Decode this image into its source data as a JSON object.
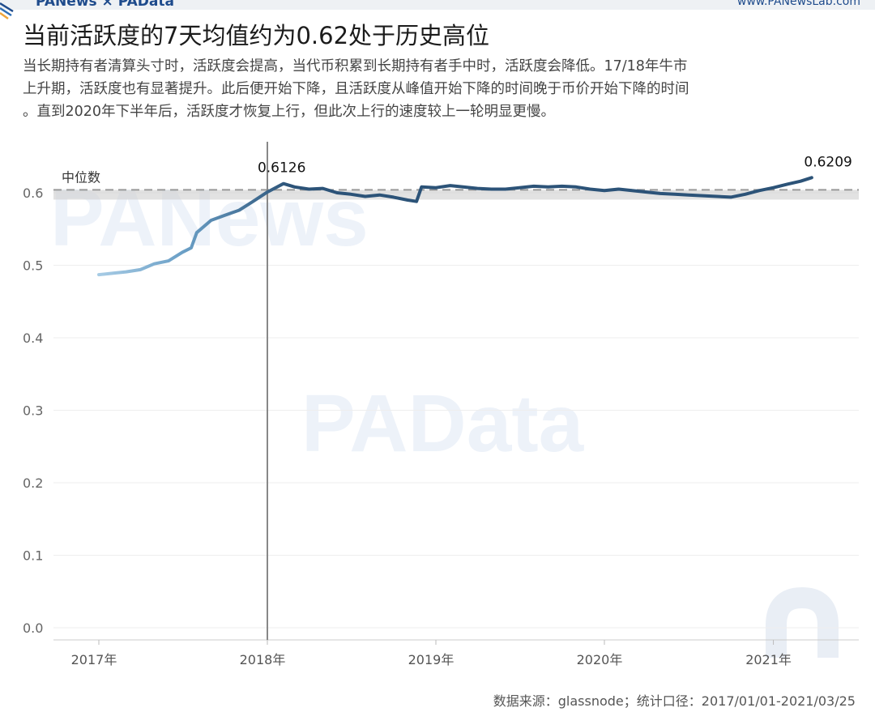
{
  "header": {
    "brand_left": "PANews × PAData",
    "brand_right": "www.PANewsLab.com"
  },
  "title": "当前活跃度的7天均值约为0.62处于历史高位",
  "subtitle_lines": [
    "当长期持有者清算头寸时，活跃度会提高，当代币积累到长期持有者手中时，活跃度会降低。17/18年牛市",
    "上升期，活跃度也有显著提升。此后便开始下降，且活跃度从峰值开始下降的时间晚于币价开始下降的时间",
    "。直到2020年下半年后，活跃度才恢复上行，但此次上行的速度较上一轮明显更慢。"
  ],
  "footer": "数据来源：glassnode；统计口径：2017/01/01-2021/03/25",
  "watermarks": [
    "PANews",
    "PAData"
  ],
  "colors": {
    "line_light": "#a9cde6",
    "line_dark": "#2c5378",
    "median": "#999999",
    "vline": "#888888",
    "grid": "#eeeeee",
    "brand": "#1e4b8c"
  },
  "chart_data": {
    "type": "line",
    "title": "当前活跃度的7天均值约为0.62处于历史高位",
    "xlabel": "",
    "ylabel": "",
    "ylim": [
      0,
      0.65
    ],
    "xlim": [
      "2016-10-01",
      "2021-05-15"
    ],
    "yticks": [
      0.0,
      0.1,
      0.2,
      0.3,
      0.4,
      0.5,
      0.6
    ],
    "ytick_labels": [
      "0.0",
      "0.1",
      "0.2",
      "0.3",
      "0.4",
      "0.5",
      "0.6"
    ],
    "xticks": [
      "2017-01-01",
      "2018-01-01",
      "2019-01-01",
      "2020-01-01",
      "2021-01-01"
    ],
    "xtick_labels": [
      "2017年",
      "2018年",
      "2019年",
      "2020年",
      "2021年"
    ],
    "grid": true,
    "reference_line": {
      "label": "中位数",
      "value": 0.604
    },
    "vertical_marker": "2018-01-01",
    "annotations": [
      {
        "text": "0.6126",
        "x": "2018-02-05",
        "y": 0.6126
      },
      {
        "text": "0.6209",
        "x": "2021-03-25",
        "y": 0.6209
      }
    ],
    "series": [
      {
        "x": [
          "2017-01-01",
          "2017-02-01",
          "2017-03-01",
          "2017-04-01",
          "2017-05-01",
          "2017-06-01",
          "2017-07-01",
          "2017-07-20",
          "2017-08-01",
          "2017-09-01",
          "2017-10-01",
          "2017-11-01",
          "2017-12-01",
          "2018-01-01",
          "2018-02-05",
          "2018-03-01",
          "2018-04-01",
          "2018-05-01",
          "2018-06-01",
          "2018-07-01",
          "2018-08-01",
          "2018-09-01",
          "2018-10-01",
          "2018-11-01",
          "2018-11-20",
          "2018-12-01",
          "2019-01-01",
          "2019-02-01",
          "2019-03-01",
          "2019-04-01",
          "2019-05-01",
          "2019-06-01",
          "2019-07-01",
          "2019-08-01",
          "2019-09-01",
          "2019-10-01",
          "2019-11-01",
          "2019-12-01",
          "2020-01-01",
          "2020-02-01",
          "2020-03-01",
          "2020-04-01",
          "2020-05-01",
          "2020-06-01",
          "2020-07-01",
          "2020-08-01",
          "2020-09-01",
          "2020-10-01",
          "2020-11-01",
          "2020-12-01",
          "2021-01-01",
          "2021-02-01",
          "2021-03-01",
          "2021-03-25"
        ],
        "values": [
          0.487,
          0.489,
          0.491,
          0.494,
          0.502,
          0.506,
          0.518,
          0.524,
          0.545,
          0.562,
          0.569,
          0.576,
          0.588,
          0.601,
          0.6126,
          0.608,
          0.605,
          0.606,
          0.6,
          0.598,
          0.595,
          0.597,
          0.594,
          0.59,
          0.588,
          0.608,
          0.607,
          0.61,
          0.608,
          0.606,
          0.605,
          0.605,
          0.607,
          0.609,
          0.608,
          0.609,
          0.608,
          0.605,
          0.603,
          0.605,
          0.603,
          0.601,
          0.599,
          0.598,
          0.597,
          0.596,
          0.595,
          0.594,
          0.598,
          0.603,
          0.607,
          0.612,
          0.616,
          0.6209
        ]
      }
    ]
  }
}
